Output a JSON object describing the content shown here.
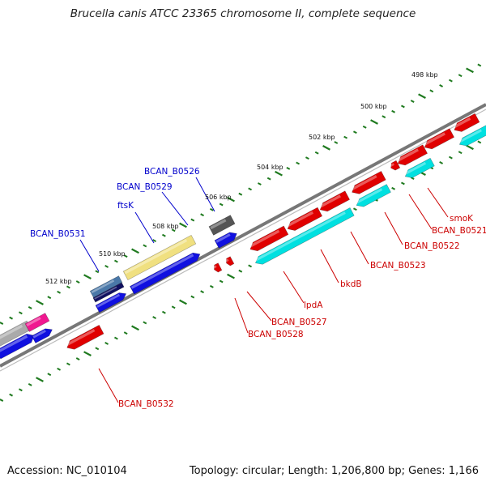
{
  "title": "Brucella canis ATCC 23365 chromosome II, complete sequence",
  "accession_text": "Accession: NC_010104",
  "topology_text": "Topology: circular; Length: 1,206,800 bp; Genes: 1,166",
  "colors": {
    "backbone": "#777777",
    "tick": "#1f7a1f",
    "forward_label": "#0000cc",
    "reverse_label": "#cc0000",
    "blue": "#1010e0",
    "red": "#e00000",
    "cyan": "#00e0e0",
    "khaki": "#f0e080",
    "gray": "#aaaaaa",
    "dark_gray": "#555555",
    "steel_blue": "#4a78a8",
    "navy": "#101060",
    "pink": "#f01890"
  },
  "scale_labels": [
    "498 kbp",
    "500 kbp",
    "502 kbp",
    "504 kbp",
    "506 kbp",
    "508 kbp",
    "510 kbp",
    "512 kbp"
  ],
  "gene_labels_forward": [
    "BCAN_B0526",
    "BCAN_B0529",
    "ftsK",
    "BCAN_B0531"
  ],
  "gene_labels_reverse": [
    "smoK",
    "BCAN_B0521",
    "BCAN_B0522",
    "BCAN_B0523",
    "bkdB",
    "lpdA",
    "BCAN_B0527",
    "BCAN_B0528",
    "BCAN_B0532"
  ]
}
